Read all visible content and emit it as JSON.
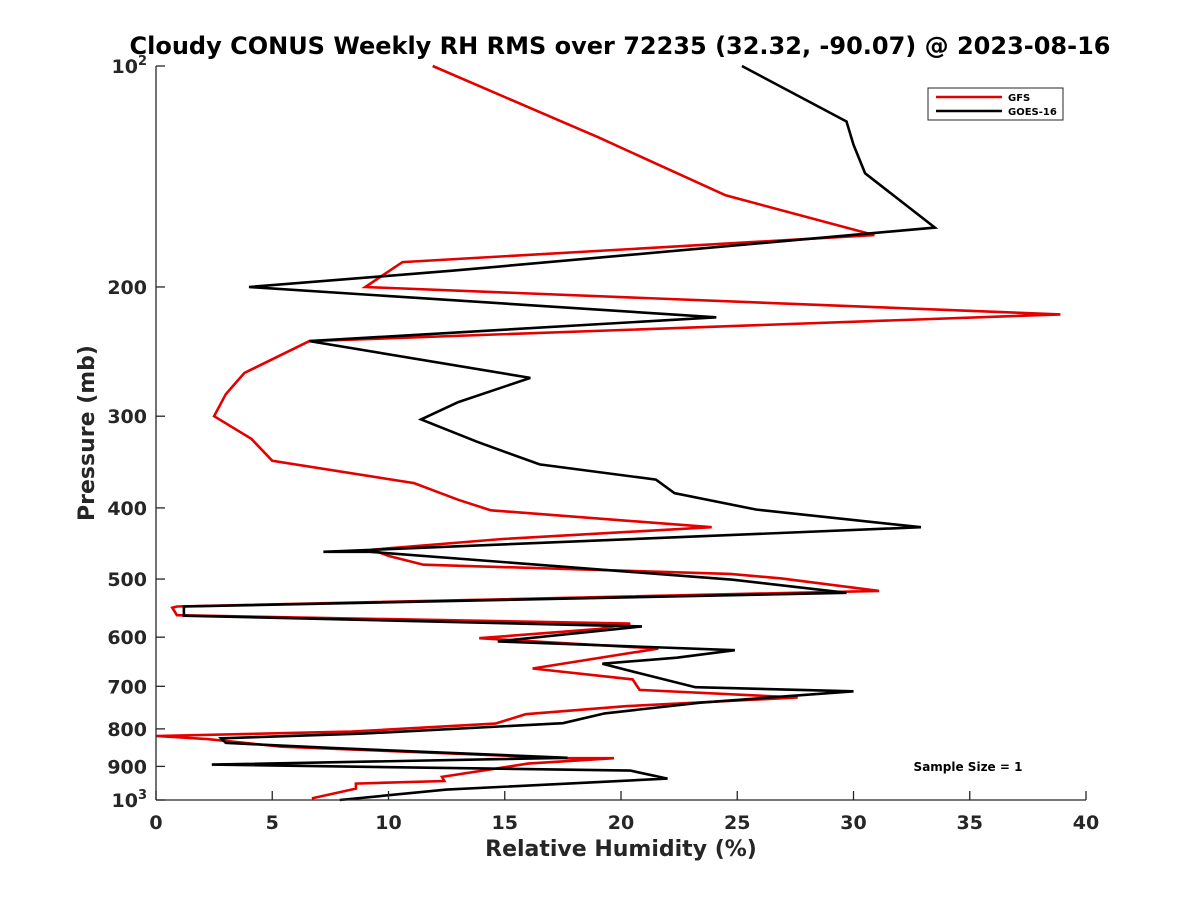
{
  "chart_data": {
    "type": "line",
    "title": "Cloudy CONUS Weekly RH RMS over 72235 (32.32, -90.07) @ 2023-08-16",
    "xlabel": "Relative Humidity (%)",
    "ylabel": "Pressure (mb)",
    "xlim": [
      0,
      40
    ],
    "ylim": [
      100,
      1000
    ],
    "yscale": "log",
    "yreversed": true,
    "grid": false,
    "legend_location": "top-right",
    "x_ticks": [
      0,
      5,
      10,
      15,
      20,
      25,
      30,
      35,
      40
    ],
    "x_tick_labels": [
      "0",
      "5",
      "10",
      "15",
      "20",
      "25",
      "30",
      "35",
      "40"
    ],
    "y_ticks": [
      100,
      200,
      300,
      400,
      500,
      600,
      700,
      800,
      900,
      1000
    ],
    "y_tick_labels": [
      {
        "base": "10",
        "exp": "2"
      },
      {
        "base": "200"
      },
      {
        "base": "300"
      },
      {
        "base": "400"
      },
      {
        "base": "500"
      },
      {
        "base": "600"
      },
      {
        "base": "700"
      },
      {
        "base": "800"
      },
      {
        "base": "900"
      },
      {
        "base": "10",
        "exp": "3"
      }
    ],
    "annotation": "Sample Size = 1",
    "series": [
      {
        "name": "GFS",
        "color": "#e50000",
        "points": [
          [
            11.9,
            100
          ],
          [
            19.0,
            125
          ],
          [
            24.5,
            150
          ],
          [
            30.9,
            170
          ],
          [
            10.6,
            185
          ],
          [
            9.0,
            200
          ],
          [
            38.9,
            218
          ],
          [
            6.6,
            237
          ],
          [
            3.8,
            262
          ],
          [
            3.0,
            280
          ],
          [
            2.5,
            300
          ],
          [
            4.1,
            322
          ],
          [
            5.0,
            345
          ],
          [
            11.1,
            370
          ],
          [
            13.0,
            390
          ],
          [
            14.4,
            403
          ],
          [
            23.9,
            425
          ],
          [
            14.9,
            441
          ],
          [
            9.3,
            456
          ],
          [
            10.0,
            465
          ],
          [
            11.5,
            478
          ],
          [
            24.7,
            492
          ],
          [
            26.9,
            499
          ],
          [
            31.1,
            519
          ],
          [
            0.9,
            545
          ],
          [
            0.7,
            547
          ],
          [
            0.9,
            560
          ],
          [
            20.4,
            575
          ],
          [
            19.0,
            585
          ],
          [
            13.9,
            602
          ],
          [
            21.6,
            622
          ],
          [
            16.2,
            662
          ],
          [
            20.5,
            685
          ],
          [
            20.8,
            708
          ],
          [
            27.6,
            725
          ],
          [
            20.2,
            745
          ],
          [
            15.9,
            764
          ],
          [
            14.6,
            787
          ],
          [
            8.4,
            807
          ],
          [
            0.0,
            818
          ],
          [
            2.2,
            826
          ],
          [
            5.4,
            846
          ],
          [
            17.7,
            877
          ],
          [
            19.7,
            877
          ],
          [
            16.0,
            892
          ],
          [
            12.3,
            930
          ],
          [
            12.4,
            942
          ],
          [
            8.6,
            950
          ],
          [
            8.6,
            965
          ],
          [
            6.7,
            995
          ]
        ]
      },
      {
        "name": "GOES-16",
        "color": "#000000",
        "points": [
          [
            25.2,
            100
          ],
          [
            29.7,
            119
          ],
          [
            30.0,
            128
          ],
          [
            30.5,
            140
          ],
          [
            33.5,
            166
          ],
          [
            12.8,
            190
          ],
          [
            4.0,
            200
          ],
          [
            24.1,
            220
          ],
          [
            6.6,
            237
          ],
          [
            16.1,
            266
          ],
          [
            13.0,
            287
          ],
          [
            11.4,
            303
          ],
          [
            13.8,
            325
          ],
          [
            16.5,
            349
          ],
          [
            21.5,
            366
          ],
          [
            22.3,
            382
          ],
          [
            25.8,
            402
          ],
          [
            32.9,
            425
          ],
          [
            7.2,
            459
          ],
          [
            9.2,
            459
          ],
          [
            24.8,
            501
          ],
          [
            29.7,
            522
          ],
          [
            1.2,
            545
          ],
          [
            1.2,
            561
          ],
          [
            20.9,
            580
          ],
          [
            14.7,
            608
          ],
          [
            24.9,
            625
          ],
          [
            22.4,
            640
          ],
          [
            19.2,
            652
          ],
          [
            20.8,
            672
          ],
          [
            23.2,
            702
          ],
          [
            30.0,
            711
          ],
          [
            23.4,
            737
          ],
          [
            19.3,
            762
          ],
          [
            17.5,
            786
          ],
          [
            8.9,
            812
          ],
          [
            2.8,
            824
          ],
          [
            3.0,
            836
          ],
          [
            7.8,
            850
          ],
          [
            17.7,
            876
          ],
          [
            2.4,
            895
          ],
          [
            20.4,
            912
          ],
          [
            22.0,
            935
          ],
          [
            12.5,
            968
          ],
          [
            7.9,
            1000
          ]
        ]
      }
    ]
  }
}
